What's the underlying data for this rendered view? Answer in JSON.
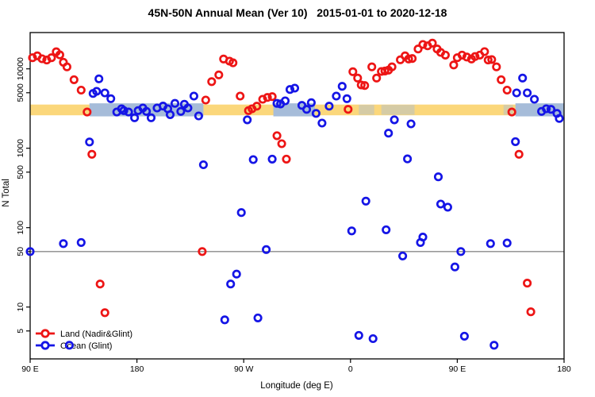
{
  "title": "45N-50N Annual Mean (Ver 10)   2015-01-01 to 2020-12-18",
  "legend": {
    "items": [
      {
        "label": "Land (Nadir&Glint)",
        "color": "#ED1515"
      },
      {
        "label": "Ocean (Glint)",
        "color": "#1515E6"
      }
    ]
  },
  "chart_data": {
    "type": "scatter",
    "title": "45N-50N Annual Mean (Ver 10)   2015-01-01 to 2020-12-18",
    "xlabel": "Longitude (deg E)",
    "ylabel": "N Total",
    "x_axis": {
      "range": [
        90,
        540
      ],
      "ticks": [
        90,
        180,
        270,
        360,
        450,
        540
      ],
      "tick_labels": [
        "90 E",
        "180",
        "90 W",
        "0",
        "90 E",
        "180"
      ]
    },
    "y_axis": {
      "scale": "log",
      "range": [
        2.2,
        28000
      ],
      "ticks": [
        5,
        10,
        50,
        100,
        500,
        1000,
        5000,
        10000
      ],
      "tick_labels": [
        "5",
        "10",
        "50",
        "100",
        "500",
        "1000",
        "5000",
        "10000"
      ]
    },
    "grid": false,
    "legend_position": "bottom-left-inside",
    "reference_line": {
      "value": 50,
      "color": "#8A8A8A"
    },
    "bands": {
      "orange_band": {
        "value_range": [
          2600,
          3550
        ],
        "lon_range": [
          90,
          540
        ],
        "color": "#FBD77B"
      },
      "blue_band_color": "#A6BCD9",
      "blue_band_value_range": [
        2520,
        3680
      ],
      "blue_segments": [
        {
          "lon_range": [
            140,
            236
          ]
        },
        {
          "lon_range": [
            295,
            330
          ]
        },
        {
          "lon_range": [
            499,
            540
          ]
        }
      ],
      "blue_faint_segments": [
        {
          "lon_range": [
            367,
            380
          ]
        },
        {
          "lon_range": [
            386,
            414
          ]
        },
        {
          "lon_range": [
            489,
            497
          ]
        }
      ]
    },
    "series": [
      {
        "name": "Land (Nadir&Glint)",
        "color": "#ED1515",
        "points": [
          [
            92,
            13800
          ],
          [
            96,
            14600
          ],
          [
            100,
            13400
          ],
          [
            104,
            12900
          ],
          [
            108,
            13800
          ],
          [
            112,
            16400
          ],
          [
            115,
            15000
          ],
          [
            118,
            12100
          ],
          [
            121,
            10600
          ],
          [
            127,
            7300
          ],
          [
            133,
            5400
          ],
          [
            138,
            2860
          ],
          [
            142,
            840
          ],
          [
            149,
            19.5
          ],
          [
            153,
            8.5
          ],
          [
            235,
            50
          ],
          [
            238,
            4050
          ],
          [
            243,
            6900
          ],
          [
            249,
            8400
          ],
          [
            253,
            13300
          ],
          [
            258,
            12500
          ],
          [
            261,
            11900
          ],
          [
            267,
            4540
          ],
          [
            274,
            2980
          ],
          [
            277,
            3140
          ],
          [
            281,
            3390
          ],
          [
            286,
            4140
          ],
          [
            290,
            4370
          ],
          [
            294,
            4470
          ],
          [
            298,
            1440
          ],
          [
            302,
            1140
          ],
          [
            306,
            730
          ],
          [
            358,
            3090
          ],
          [
            362,
            9200
          ],
          [
            366,
            7660
          ],
          [
            369,
            6270
          ],
          [
            372,
            6170
          ],
          [
            378,
            10600
          ],
          [
            382,
            7660
          ],
          [
            386,
            9260
          ],
          [
            389,
            9400
          ],
          [
            392,
            9630
          ],
          [
            395,
            10600
          ],
          [
            402,
            13000
          ],
          [
            406,
            14600
          ],
          [
            409,
            13300
          ],
          [
            412,
            13500
          ],
          [
            417,
            17800
          ],
          [
            421,
            20300
          ],
          [
            425,
            19500
          ],
          [
            429,
            21100
          ],
          [
            433,
            17800
          ],
          [
            436,
            16100
          ],
          [
            440,
            14900
          ],
          [
            447,
            11200
          ],
          [
            450,
            13800
          ],
          [
            454,
            14900
          ],
          [
            458,
            14100
          ],
          [
            462,
            13300
          ],
          [
            465,
            14300
          ],
          [
            469,
            14900
          ],
          [
            473,
            16500
          ],
          [
            476,
            12900
          ],
          [
            479,
            13100
          ],
          [
            483,
            10600
          ],
          [
            487,
            7300
          ],
          [
            492,
            5400
          ],
          [
            496,
            2860
          ],
          [
            502,
            840
          ],
          [
            509,
            20
          ],
          [
            512,
            8.7
          ]
        ]
      },
      {
        "name": "Ocean (Glint)",
        "color": "#1515E6",
        "points": [
          [
            90,
            50
          ],
          [
            118,
            63
          ],
          [
            123,
            3.3
          ],
          [
            133,
            65
          ],
          [
            140,
            1200
          ],
          [
            143,
            4900
          ],
          [
            146,
            5210
          ],
          [
            148,
            7480
          ],
          [
            153,
            4980
          ],
          [
            158,
            4210
          ],
          [
            163,
            2860
          ],
          [
            167,
            3140
          ],
          [
            169,
            2980
          ],
          [
            173,
            2860
          ],
          [
            178,
            2420
          ],
          [
            181,
            2980
          ],
          [
            185,
            3210
          ],
          [
            188,
            2910
          ],
          [
            192,
            2420
          ],
          [
            197,
            3210
          ],
          [
            202,
            3400
          ],
          [
            206,
            3140
          ],
          [
            208,
            2650
          ],
          [
            212,
            3670
          ],
          [
            217,
            2910
          ],
          [
            220,
            3580
          ],
          [
            223,
            3210
          ],
          [
            228,
            4540
          ],
          [
            232,
            2550
          ],
          [
            236,
            620
          ],
          [
            254,
            6.9
          ],
          [
            259,
            19.5
          ],
          [
            264,
            26
          ],
          [
            268,
            155
          ],
          [
            273,
            2280
          ],
          [
            278,
            720
          ],
          [
            282,
            7.3
          ],
          [
            289,
            53
          ],
          [
            294,
            730
          ],
          [
            298,
            3670
          ],
          [
            301,
            3610
          ],
          [
            305,
            3950
          ],
          [
            309,
            5500
          ],
          [
            313,
            5710
          ],
          [
            319,
            3470
          ],
          [
            323,
            3090
          ],
          [
            327,
            3750
          ],
          [
            331,
            2750
          ],
          [
            336,
            2075
          ],
          [
            342,
            3390
          ],
          [
            348,
            4540
          ],
          [
            353,
            6030
          ],
          [
            357,
            4210
          ],
          [
            361,
            91
          ],
          [
            367,
            4.4
          ],
          [
            373,
            216
          ],
          [
            379,
            4
          ],
          [
            390,
            94
          ],
          [
            392,
            1550
          ],
          [
            397,
            2280
          ],
          [
            404,
            44
          ],
          [
            408,
            735
          ],
          [
            411,
            2030
          ],
          [
            419,
            65
          ],
          [
            421,
            76
          ],
          [
            434,
            437
          ],
          [
            436,
            198
          ],
          [
            442,
            181
          ],
          [
            448,
            32
          ],
          [
            453,
            50
          ],
          [
            456,
            4.3
          ],
          [
            478,
            63
          ],
          [
            481,
            3.3
          ],
          [
            492,
            64
          ],
          [
            499,
            1210
          ],
          [
            500,
            4980
          ],
          [
            505,
            7660
          ],
          [
            509,
            4980
          ],
          [
            515,
            4140
          ],
          [
            521,
            2910
          ],
          [
            525,
            3140
          ],
          [
            529,
            3090
          ],
          [
            534,
            2750
          ],
          [
            536,
            2370
          ]
        ]
      }
    ]
  }
}
